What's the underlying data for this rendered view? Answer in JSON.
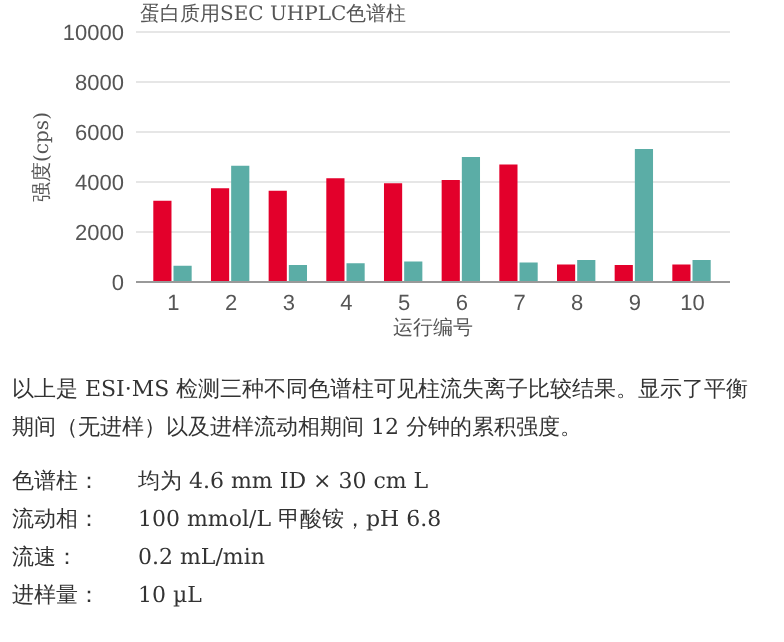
{
  "chart_data": {
    "type": "bar",
    "title": "蛋白质用SEC UHPLC色谱柱",
    "xlabel": "运行编号",
    "ylabel": "强度(cps)",
    "categories": [
      "1",
      "2",
      "3",
      "4",
      "5",
      "6",
      "7",
      "8",
      "9",
      "10"
    ],
    "series": [
      {
        "color": "#e3002b",
        "values": [
          3250,
          3750,
          3650,
          4150,
          3950,
          4080,
          4700,
          700,
          680,
          700
        ]
      },
      {
        "color": "#5bada6",
        "values": [
          650,
          4650,
          680,
          750,
          820,
          5000,
          780,
          880,
          5320,
          880
        ]
      }
    ],
    "ylim": [
      0,
      10000
    ],
    "yticks": [
      0,
      2000,
      4000,
      6000,
      8000,
      10000
    ],
    "grid": "y",
    "annotations": [
      "以上是 ESI·MS 检测三种不同色谱柱可见柱流失离子比较结果。显示了平衡期间（无进样）以及进样流动相期间 12 分钟的累积强度。",
      "色谱柱：",
      "均为 4.6 mm ID × 30 cm L",
      "流动相：",
      "100 mmol/L 甲酸铵，pH 6.8",
      "流速：",
      "0.2 mL/min",
      "进样量：",
      "10 µL"
    ]
  }
}
